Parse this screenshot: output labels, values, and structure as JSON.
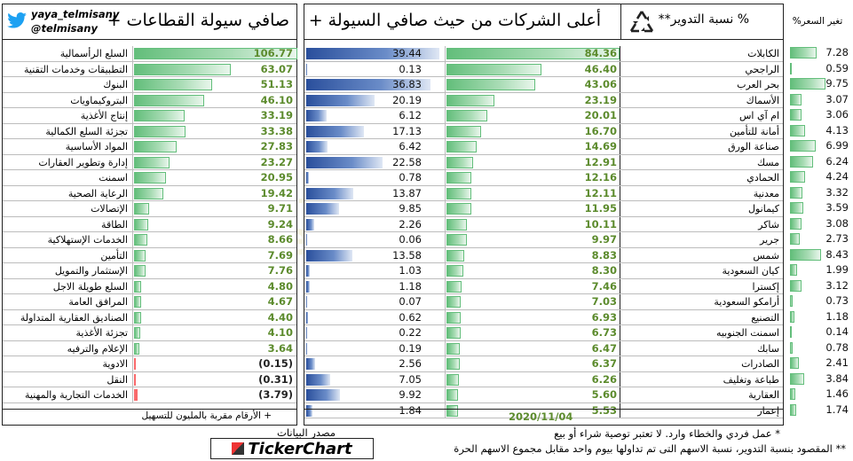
{
  "twitter": {
    "handle1": "yaya_telmisany",
    "handle2": "@telmisany"
  },
  "sectors": {
    "title": "صافي سيولة القطاعات +",
    "footnote": "+ الأرقام مقربة بالمليون للتسهيل",
    "rows": [
      {
        "name": "السلع الرأسمالية",
        "value": "106.77",
        "num": 106.77
      },
      {
        "name": "التطبيقات وخدمات التقنية",
        "value": "63.07",
        "num": 63.07
      },
      {
        "name": "البنوك",
        "value": "51.13",
        "num": 51.13
      },
      {
        "name": "البتروكيماويات",
        "value": "46.10",
        "num": 46.1
      },
      {
        "name": "إنتاج الأغذية",
        "value": "33.19",
        "num": 33.19
      },
      {
        "name": "تجزئة السلع الكمالية",
        "value": "33.38",
        "num": 33.38
      },
      {
        "name": "المواد الأساسية",
        "value": "27.83",
        "num": 27.83
      },
      {
        "name": "إدارة وتطوير العقارات",
        "value": "23.27",
        "num": 23.27
      },
      {
        "name": "اسمنت",
        "value": "20.95",
        "num": 20.95
      },
      {
        "name": "الرعاية الصحية",
        "value": "19.42",
        "num": 19.42
      },
      {
        "name": "الإتصالات",
        "value": "9.71",
        "num": 9.71
      },
      {
        "name": "الطاقة",
        "value": "9.24",
        "num": 9.24
      },
      {
        "name": "الخدمات الإستهلاكية",
        "value": "8.66",
        "num": 8.66
      },
      {
        "name": "التأمين",
        "value": "7.69",
        "num": 7.69
      },
      {
        "name": "الإستثمار والتمويل",
        "value": "7.76",
        "num": 7.76
      },
      {
        "name": "السلع طويلة الاجل",
        "value": "4.80",
        "num": 4.8
      },
      {
        "name": "المرافق العامة",
        "value": "4.67",
        "num": 4.67
      },
      {
        "name": "الصناديق العقارية المتداولة",
        "value": "4.40",
        "num": 4.4
      },
      {
        "name": "تجزئة الأغذية",
        "value": "4.10",
        "num": 4.1
      },
      {
        "name": "الإعلام والترفيه",
        "value": "3.64",
        "num": 3.64
      },
      {
        "name": "الادوية",
        "value": "(0.15)",
        "num": -0.15
      },
      {
        "name": "النقل",
        "value": "(0.31)",
        "num": -0.31
      },
      {
        "name": "الخدمات التجارية والمهنية",
        "value": "(3.79)",
        "num": -3.79
      }
    ]
  },
  "companies": {
    "title": "أعلى الشركات من حيث صافي السيولة +",
    "date": "2020/11/04",
    "rows": [
      {
        "name": "الكابلات",
        "value": "84.36",
        "num": 84.36
      },
      {
        "name": "الراجحي",
        "value": "46.40",
        "num": 46.4
      },
      {
        "name": "بحر العرب",
        "value": "43.06",
        "num": 43.06
      },
      {
        "name": "الأسماك",
        "value": "23.19",
        "num": 23.19
      },
      {
        "name": "ام آي اس",
        "value": "20.01",
        "num": 20.01
      },
      {
        "name": "أمانة للتأمين",
        "value": "16.70",
        "num": 16.7
      },
      {
        "name": "صناعة الورق",
        "value": "14.69",
        "num": 14.69
      },
      {
        "name": "مسك",
        "value": "12.91",
        "num": 12.91
      },
      {
        "name": "الحمادي",
        "value": "12.16",
        "num": 12.16
      },
      {
        "name": "معدنية",
        "value": "12.11",
        "num": 12.11
      },
      {
        "name": "كيمانول",
        "value": "11.95",
        "num": 11.95
      },
      {
        "name": "شاكر",
        "value": "10.11",
        "num": 10.11
      },
      {
        "name": "جرير",
        "value": "9.97",
        "num": 9.97
      },
      {
        "name": "شمس",
        "value": "8.83",
        "num": 8.83
      },
      {
        "name": "كيان السعودية",
        "value": "8.30",
        "num": 8.3
      },
      {
        "name": "إكسترا",
        "value": "7.46",
        "num": 7.46
      },
      {
        "name": "أرامكو السعودية",
        "value": "7.03",
        "num": 7.03
      },
      {
        "name": "التصنيع",
        "value": "6.93",
        "num": 6.93
      },
      {
        "name": "اسمنت الجنوبيه",
        "value": "6.73",
        "num": 6.73
      },
      {
        "name": "سابك",
        "value": "6.47",
        "num": 6.47
      },
      {
        "name": "الصادرات",
        "value": "6.37",
        "num": 6.37
      },
      {
        "name": "طباعة وتغليف",
        "value": "6.26",
        "num": 6.26
      },
      {
        "name": "العقارية",
        "value": "5.60",
        "num": 5.6
      },
      {
        "name": "إعمار",
        "value": "5.53",
        "num": 5.53
      }
    ]
  },
  "turnover": {
    "title": "% نسبة التدوير**",
    "icon": "recycle-icon",
    "rows": [
      {
        "value": "39.44",
        "num": 39.44
      },
      {
        "value": "0.13",
        "num": 0.13
      },
      {
        "value": "36.83",
        "num": 36.83
      },
      {
        "value": "20.19",
        "num": 20.19
      },
      {
        "value": "6.12",
        "num": 6.12
      },
      {
        "value": "17.13",
        "num": 17.13
      },
      {
        "value": "6.42",
        "num": 6.42
      },
      {
        "value": "22.58",
        "num": 22.58
      },
      {
        "value": "0.78",
        "num": 0.78
      },
      {
        "value": "13.87",
        "num": 13.87
      },
      {
        "value": "9.85",
        "num": 9.85
      },
      {
        "value": "2.26",
        "num": 2.26
      },
      {
        "value": "0.06",
        "num": 0.06
      },
      {
        "value": "13.58",
        "num": 13.58
      },
      {
        "value": "1.03",
        "num": 1.03
      },
      {
        "value": "1.18",
        "num": 1.18
      },
      {
        "value": "0.07",
        "num": 0.07
      },
      {
        "value": "0.62",
        "num": 0.62
      },
      {
        "value": "0.22",
        "num": 0.22
      },
      {
        "value": "0.19",
        "num": 0.19
      },
      {
        "value": "2.56",
        "num": 2.56
      },
      {
        "value": "7.05",
        "num": 7.05
      },
      {
        "value": "9.92",
        "num": 9.92
      },
      {
        "value": "1.84",
        "num": 1.84
      }
    ]
  },
  "price_change": {
    "title": "تغير السعر%",
    "rows": [
      {
        "value": "7.28",
        "num": 7.28
      },
      {
        "value": "0.59",
        "num": 0.59
      },
      {
        "value": "9.75",
        "num": 9.75
      },
      {
        "value": "3.07",
        "num": 3.07
      },
      {
        "value": "3.06",
        "num": 3.06
      },
      {
        "value": "4.13",
        "num": 4.13
      },
      {
        "value": "6.99",
        "num": 6.99
      },
      {
        "value": "6.24",
        "num": 6.24
      },
      {
        "value": "4.24",
        "num": 4.24
      },
      {
        "value": "3.32",
        "num": 3.32
      },
      {
        "value": "3.59",
        "num": 3.59
      },
      {
        "value": "3.08",
        "num": 3.08
      },
      {
        "value": "2.73",
        "num": 2.73
      },
      {
        "value": "8.43",
        "num": 8.43
      },
      {
        "value": "1.99",
        "num": 1.99
      },
      {
        "value": "3.12",
        "num": 3.12
      },
      {
        "value": "0.73",
        "num": 0.73
      },
      {
        "value": "1.18",
        "num": 1.18
      },
      {
        "value": "0.14",
        "num": 0.14
      },
      {
        "value": "0.78",
        "num": 0.78
      },
      {
        "value": "2.41",
        "num": 2.41
      },
      {
        "value": "3.84",
        "num": 3.84
      },
      {
        "value": "1.46",
        "num": 1.46
      },
      {
        "value": "1.74",
        "num": 1.74
      }
    ]
  },
  "source": {
    "label": "مصدر البيانات",
    "brand": "TickerChart"
  },
  "notes": [
    "* عمل فردي والخطاء وارد. لا تعتبر توصية شراء أو بيع",
    "** المقصود بنسبة التدوير، نسبة الاسهم التى تم تداولها بيوم واحد مقابل مجموع الاسهم الحرة"
  ],
  "colors": {
    "green": "#63be7b",
    "red": "#f8696b",
    "blue": "#2a4f9c",
    "value_green": "#5c8b2d",
    "twitter_blue": "#1da1f2"
  },
  "watermark": "yaya_telmisany"
}
